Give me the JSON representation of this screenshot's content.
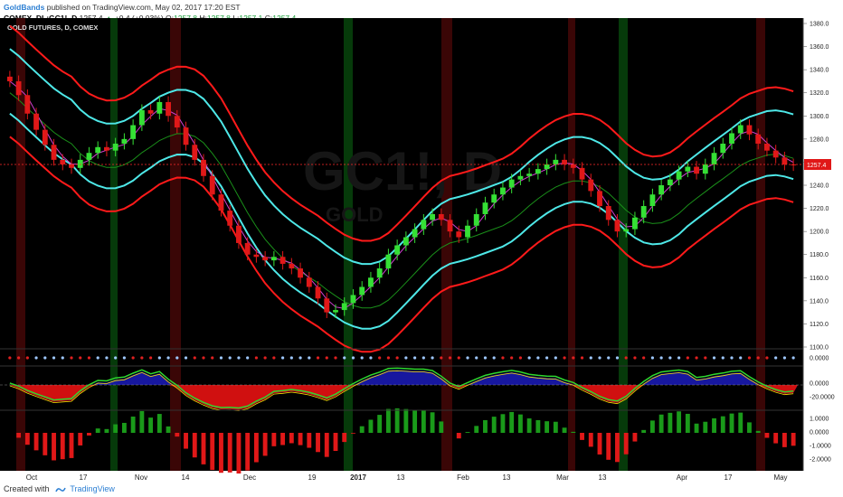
{
  "header": {
    "author": "GoldBands",
    "published_text": "published on TradingView.com, May 02, 2017 17:20 EST",
    "symbol": "COMEX_DL:GC1!, D",
    "last": "1257.4",
    "change": "+0.4 (+0.03%)",
    "open_label": "O:",
    "open": "1257.8",
    "high_label": "H:",
    "high": "1257.8",
    "low_label": "L:",
    "low": "1257.1",
    "close_label": "C:",
    "close": "1257.4"
  },
  "main": {
    "title": "GOLD FUTURES, D, COMEX",
    "watermark_symbol": "GC1!, D",
    "watermark_name": "GOLD",
    "price_label": "1257.4",
    "price_axis": [
      "1380.0",
      "1360.0",
      "1340.0",
      "1320.0",
      "1300.0",
      "1280.0",
      "1260.0",
      "1240.0",
      "1220.0",
      "1200.0",
      "1180.0",
      "1160.0",
      "1140.0",
      "1120.0",
      "1100.0"
    ],
    "dot_axis": [
      "0.0000"
    ],
    "osc_axis": [
      "0.0000",
      "-20.0000"
    ],
    "hist_axis": [
      "1.0000",
      "0.0000",
      "-1.0000",
      "-2.0000"
    ],
    "date_labels": [
      "Oct",
      "17",
      "Nov",
      "14",
      "Dec",
      "19",
      "2017",
      "13",
      "Feb",
      "13",
      "Mar",
      "13",
      "Apr",
      "17",
      "May"
    ]
  },
  "footer": {
    "created_with": "Created with",
    "brand": "TradingView"
  },
  "colors": {
    "background": "#000000",
    "band_outer": "#ff1a1a",
    "band_inner": "#4ee8e8",
    "ma": "#1a8f1a",
    "short_ma": "#d13fd1",
    "candle_up": "#35e035",
    "candle_down": "#e01818",
    "highlight_red": "#3a0606",
    "highlight_green": "#063a0a"
  },
  "chart_data": {
    "type": "candlestick",
    "title": "GOLD FUTURES, D, COMEX",
    "x_labels": [
      "Oct",
      "17",
      "Nov",
      "14",
      "Dec",
      "19",
      "2017",
      "13",
      "Feb",
      "13",
      "Mar",
      "13",
      "Apr",
      "17",
      "May"
    ],
    "ylim": [
      1100,
      1380
    ],
    "last_price": 1257.4,
    "closes": [
      1330,
      1318,
      1302,
      1288,
      1275,
      1262,
      1258,
      1255,
      1262,
      1268,
      1273,
      1270,
      1276,
      1280,
      1292,
      1305,
      1302,
      1312,
      1300,
      1290,
      1275,
      1262,
      1248,
      1232,
      1218,
      1205,
      1190,
      1180,
      1178,
      1175,
      1178,
      1172,
      1168,
      1160,
      1152,
      1142,
      1130,
      1132,
      1138,
      1145,
      1152,
      1160,
      1168,
      1180,
      1188,
      1195,
      1202,
      1210,
      1215,
      1210,
      1200,
      1195,
      1205,
      1215,
      1225,
      1232,
      1238,
      1245,
      1248,
      1250,
      1254,
      1258,
      1262,
      1258,
      1255,
      1245,
      1235,
      1222,
      1210,
      1200,
      1202,
      1212,
      1222,
      1232,
      1240,
      1245,
      1252,
      1256,
      1250,
      1258,
      1268,
      1276,
      1285,
      1292,
      1284,
      1276,
      1270,
      1264,
      1258,
      1257.4
    ]
  }
}
